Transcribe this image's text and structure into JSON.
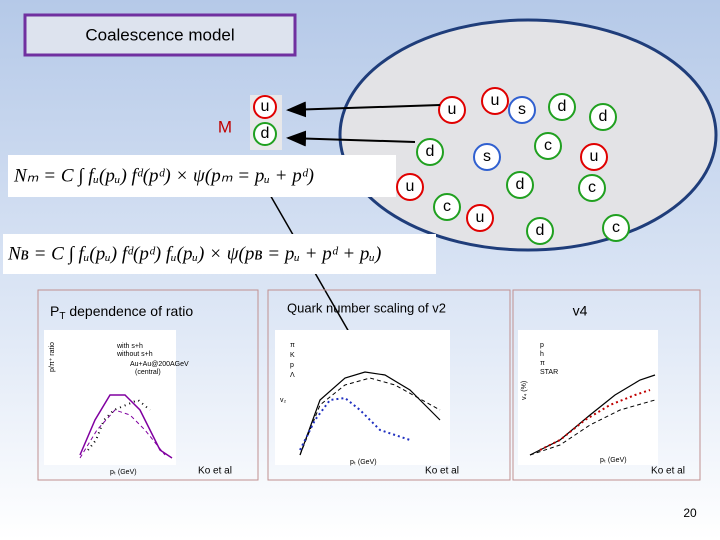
{
  "slide": {
    "title": "Coalescence model",
    "meson_label": "M",
    "meson_quarks": [
      "u",
      "d"
    ],
    "cloud_quarks": [
      "u",
      "u",
      "s",
      "d",
      "d",
      "c",
      "d",
      "s",
      "u",
      "u",
      "d",
      "c",
      "c",
      "u",
      "d",
      "c"
    ],
    "formula_meson": "Nₘ = C ∫ fᵤ(pᵤ) fᵈ(pᵈ) × ψ(pₘ = pᵤ + pᵈ)",
    "formula_baryon": "Nʙ = C ∫ fᵤ(pᵤ) fᵈ(pᵈ) fᵤ(pᵤ) × ψ(pʙ = pᵤ + pᵈ + pᵤ)",
    "panels": [
      {
        "title_main": "P",
        "title_sub": "T",
        "title_rest": " dependence of ratio",
        "source": "Ko et al",
        "legend": [
          "with s+h",
          "without s+h",
          "Au+Au@200AGeV",
          "(central)"
        ],
        "x_label": "pₜ (GeV)",
        "y_label": "p/π⁺ ratio"
      },
      {
        "title": "Quark number scaling of v2",
        "source": "Ko et al",
        "legend": [
          "π",
          "K",
          "p",
          "Λ"
        ],
        "x_label": "pₜ (GeV)",
        "y_label": "v₂"
      },
      {
        "title": "v4",
        "source": "Ko et al",
        "legend": [
          "p",
          "h",
          "π",
          "STAR"
        ],
        "x_label": "pₜ (GeV)",
        "y_label": "v₄ (%)"
      }
    ],
    "page_number": "20"
  }
}
